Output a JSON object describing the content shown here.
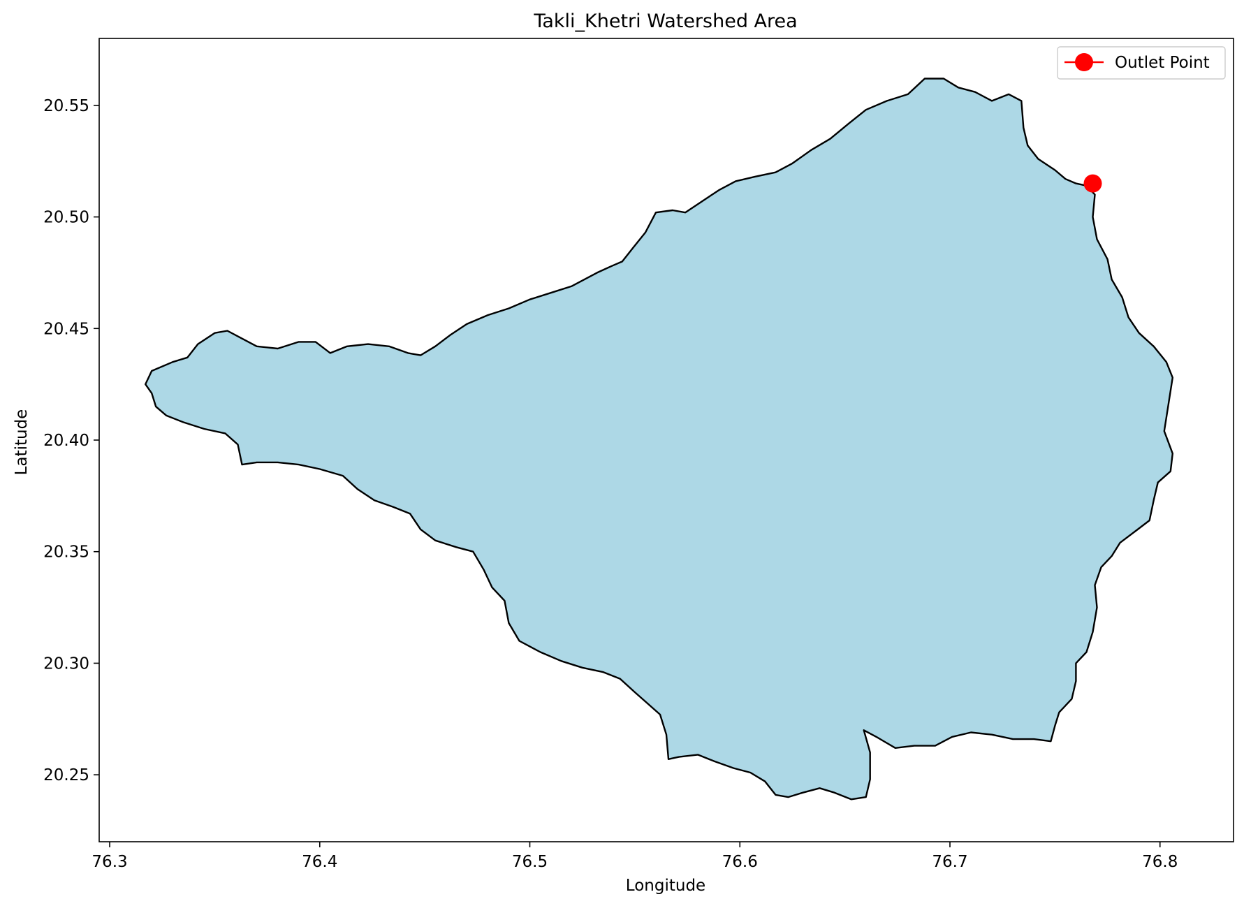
{
  "chart_data": {
    "type": "map",
    "title": "Takli_Khetri Watershed Area",
    "xlabel": "Longitude",
    "ylabel": "Latitude",
    "xlim": [
      76.295,
      76.835
    ],
    "ylim": [
      20.22,
      20.58
    ],
    "xticks": [
      {
        "value": 76.3,
        "label": "76.3"
      },
      {
        "value": 76.4,
        "label": "76.4"
      },
      {
        "value": 76.5,
        "label": "76.5"
      },
      {
        "value": 76.6,
        "label": "76.6"
      },
      {
        "value": 76.7,
        "label": "76.7"
      },
      {
        "value": 76.8,
        "label": "76.8"
      }
    ],
    "yticks": [
      {
        "value": 20.25,
        "label": "20.25"
      },
      {
        "value": 20.3,
        "label": "20.30"
      },
      {
        "value": 20.35,
        "label": "20.35"
      },
      {
        "value": 20.4,
        "label": "20.40"
      },
      {
        "value": 20.45,
        "label": "20.45"
      },
      {
        "value": 20.5,
        "label": "20.50"
      },
      {
        "value": 20.55,
        "label": "20.55"
      }
    ],
    "grid": false,
    "legend": {
      "position": "top-right",
      "entries": [
        {
          "label": "Outlet Point",
          "color": "#ff0000",
          "marker": "circle"
        }
      ]
    },
    "watershed": {
      "fill": "#add8e6",
      "edge": "#000000",
      "boundary": [
        [
          76.32,
          20.431
        ],
        [
          76.33,
          20.435
        ],
        [
          76.337,
          20.437
        ],
        [
          76.342,
          20.443
        ],
        [
          76.35,
          20.448
        ],
        [
          76.356,
          20.449
        ],
        [
          76.362,
          20.446
        ],
        [
          76.37,
          20.442
        ],
        [
          76.38,
          20.441
        ],
        [
          76.39,
          20.444
        ],
        [
          76.398,
          20.444
        ],
        [
          76.405,
          20.439
        ],
        [
          76.413,
          20.442
        ],
        [
          76.423,
          20.443
        ],
        [
          76.433,
          20.442
        ],
        [
          76.442,
          20.439
        ],
        [
          76.448,
          20.438
        ],
        [
          76.455,
          20.442
        ],
        [
          76.462,
          20.447
        ],
        [
          76.47,
          20.452
        ],
        [
          76.48,
          20.456
        ],
        [
          76.49,
          20.459
        ],
        [
          76.5,
          20.463
        ],
        [
          76.51,
          20.466
        ],
        [
          76.52,
          20.469
        ],
        [
          76.532,
          20.475
        ],
        [
          76.539,
          20.478
        ],
        [
          76.544,
          20.48
        ],
        [
          76.549,
          20.486
        ],
        [
          76.555,
          20.493
        ],
        [
          76.56,
          20.502
        ],
        [
          76.568,
          20.503
        ],
        [
          76.574,
          20.502
        ],
        [
          76.582,
          20.507
        ],
        [
          76.59,
          20.512
        ],
        [
          76.598,
          20.516
        ],
        [
          76.607,
          20.518
        ],
        [
          76.617,
          20.52
        ],
        [
          76.625,
          20.524
        ],
        [
          76.634,
          20.53
        ],
        [
          76.643,
          20.535
        ],
        [
          76.652,
          20.542
        ],
        [
          76.66,
          20.548
        ],
        [
          76.67,
          20.552
        ],
        [
          76.68,
          20.555
        ],
        [
          76.688,
          20.562
        ],
        [
          76.697,
          20.562
        ],
        [
          76.704,
          20.558
        ],
        [
          76.712,
          20.556
        ],
        [
          76.72,
          20.552
        ],
        [
          76.728,
          20.555
        ],
        [
          76.734,
          20.552
        ],
        [
          76.735,
          20.54
        ],
        [
          76.737,
          20.532
        ],
        [
          76.742,
          20.526
        ],
        [
          76.75,
          20.521
        ],
        [
          76.755,
          20.517
        ],
        [
          76.76,
          20.515
        ],
        [
          76.765,
          20.514
        ],
        [
          76.769,
          20.51
        ],
        [
          76.768,
          20.5
        ],
        [
          76.77,
          20.49
        ],
        [
          76.775,
          20.481
        ],
        [
          76.777,
          20.472
        ],
        [
          76.782,
          20.464
        ],
        [
          76.785,
          20.455
        ],
        [
          76.79,
          20.448
        ],
        [
          76.797,
          20.442
        ],
        [
          76.803,
          20.435
        ],
        [
          76.806,
          20.428
        ],
        [
          76.804,
          20.416
        ],
        [
          76.802,
          20.404
        ],
        [
          76.806,
          20.394
        ],
        [
          76.805,
          20.386
        ],
        [
          76.799,
          20.381
        ],
        [
          76.797,
          20.373
        ],
        [
          76.795,
          20.364
        ],
        [
          76.788,
          20.359
        ],
        [
          76.781,
          20.354
        ],
        [
          76.777,
          20.348
        ],
        [
          76.772,
          20.343
        ],
        [
          76.769,
          20.335
        ],
        [
          76.77,
          20.325
        ],
        [
          76.768,
          20.314
        ],
        [
          76.765,
          20.305
        ],
        [
          76.76,
          20.3
        ],
        [
          76.76,
          20.292
        ],
        [
          76.758,
          20.284
        ],
        [
          76.752,
          20.278
        ],
        [
          76.75,
          20.272
        ],
        [
          76.748,
          20.265
        ],
        [
          76.74,
          20.266
        ],
        [
          76.73,
          20.266
        ],
        [
          76.72,
          20.268
        ],
        [
          76.71,
          20.269
        ],
        [
          76.701,
          20.267
        ],
        [
          76.693,
          20.263
        ],
        [
          76.683,
          20.263
        ],
        [
          76.674,
          20.262
        ],
        [
          76.665,
          20.267
        ],
        [
          76.659,
          20.27
        ],
        [
          76.662,
          20.26
        ],
        [
          76.662,
          20.248
        ],
        [
          76.66,
          20.24
        ],
        [
          76.653,
          20.239
        ],
        [
          76.645,
          20.242
        ],
        [
          76.638,
          20.244
        ],
        [
          76.63,
          20.242
        ],
        [
          76.623,
          20.24
        ],
        [
          76.617,
          20.241
        ],
        [
          76.612,
          20.247
        ],
        [
          76.605,
          20.251
        ],
        [
          76.597,
          20.253
        ],
        [
          76.588,
          20.256
        ],
        [
          76.58,
          20.259
        ],
        [
          76.571,
          20.258
        ],
        [
          76.566,
          20.257
        ],
        [
          76.565,
          20.268
        ],
        [
          76.562,
          20.277
        ],
        [
          76.556,
          20.282
        ],
        [
          76.55,
          20.287
        ],
        [
          76.543,
          20.293
        ],
        [
          76.535,
          20.296
        ],
        [
          76.525,
          20.298
        ],
        [
          76.515,
          20.301
        ],
        [
          76.505,
          20.305
        ],
        [
          76.495,
          20.31
        ],
        [
          76.49,
          20.318
        ],
        [
          76.488,
          20.328
        ],
        [
          76.482,
          20.334
        ],
        [
          76.478,
          20.342
        ],
        [
          76.473,
          20.35
        ],
        [
          76.465,
          20.352
        ],
        [
          76.455,
          20.355
        ],
        [
          76.448,
          20.36
        ],
        [
          76.443,
          20.367
        ],
        [
          76.435,
          20.37
        ],
        [
          76.426,
          20.373
        ],
        [
          76.418,
          20.378
        ],
        [
          76.411,
          20.384
        ],
        [
          76.4,
          20.387
        ],
        [
          76.39,
          20.389
        ],
        [
          76.38,
          20.39
        ],
        [
          76.37,
          20.39
        ],
        [
          76.363,
          20.389
        ],
        [
          76.361,
          20.398
        ],
        [
          76.355,
          20.403
        ],
        [
          76.345,
          20.405
        ],
        [
          76.335,
          20.408
        ],
        [
          76.327,
          20.411
        ],
        [
          76.322,
          20.415
        ],
        [
          76.32,
          20.421
        ],
        [
          76.317,
          20.425
        ]
      ]
    },
    "outlet_point": {
      "name": "Outlet Point",
      "x": 76.768,
      "y": 20.515,
      "color": "#ff0000"
    }
  }
}
